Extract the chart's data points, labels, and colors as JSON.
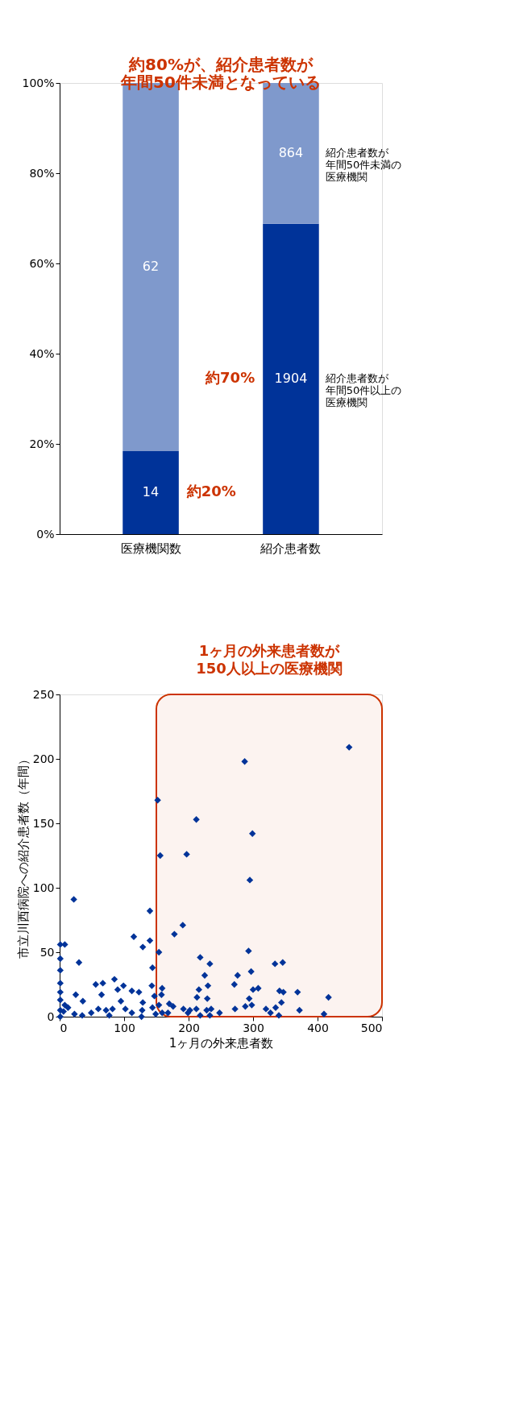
{
  "chart_data": [
    {
      "type": "bar",
      "stacked": true,
      "categories": [
        "医療機関数",
        "紹介患者数"
      ],
      "ylim": [
        0,
        100
      ],
      "yticks": [
        {
          "value": 0,
          "label": "0%"
        },
        {
          "value": 20,
          "label": "20%"
        },
        {
          "value": 40,
          "label": "40%"
        },
        {
          "value": 60,
          "label": "60%"
        },
        {
          "value": 80,
          "label": "80%"
        },
        {
          "value": 100,
          "label": "100%"
        }
      ],
      "series": [
        {
          "name": "紹介患者数が年間50件以上の医療機関",
          "color": "#003399",
          "values": [
            18.4,
            68.8
          ]
        },
        {
          "name": "紹介患者数が年間50件未満の医療機関",
          "color": "#7f99cc",
          "values": [
            81.6,
            31.2
          ]
        }
      ],
      "annotations": [
        "約80%が、紹介患者数が年間50件未満となっている",
        "約70%",
        "約20%",
        "14",
        "1904",
        "62",
        "864"
      ],
      "grid": false
    },
    {
      "type": "scatter",
      "marker": "diamond",
      "color": "#003399",
      "xlabel": "1ヶ月の外来患者数",
      "ylabel": "市立川西病院への紹介患者数（年間）",
      "xlim": [
        0,
        500
      ],
      "xticks": [
        0,
        100,
        200,
        300,
        400,
        500
      ],
      "ylim": [
        0,
        250
      ],
      "yticks": [
        0,
        50,
        100,
        150,
        200,
        250
      ],
      "x": [
        449,
        417,
        410,
        369,
        372,
        346,
        347,
        341,
        344,
        335,
        340,
        334,
        327,
        320,
        287,
        299,
        295,
        293,
        297,
        308,
        300,
        294,
        298,
        288,
        276,
        271,
        272,
        248,
        233,
        230,
        229,
        225,
        235,
        233,
        228,
        218,
        216,
        213,
        212,
        218,
        212,
        197,
        202,
        199,
        192,
        191,
        178,
        176,
        170,
        168,
        152,
        156,
        154,
        159,
        158,
        154,
        159,
        140,
        140,
        144,
        143,
        147,
        144,
        149,
        129,
        123,
        129,
        128,
        127,
        115,
        112,
        112,
        99,
        90,
        95,
        102,
        85,
        67,
        65,
        56,
        36,
        30,
        25,
        22,
        8,
        1,
        1,
        1,
        1,
        1,
        1,
        82,
        72,
        60,
        49,
        35,
        23,
        13,
        6,
        1,
        1,
        8,
        77
      ],
      "values": [
        209,
        15,
        2,
        19,
        5,
        42,
        19,
        20,
        11,
        7,
        1,
        41,
        3,
        6,
        198,
        142,
        106,
        51,
        35,
        22,
        21,
        14,
        9,
        8,
        32,
        25,
        6,
        3,
        41,
        24,
        14,
        32,
        6,
        1,
        5,
        46,
        21,
        15,
        6,
        1,
        153,
        126,
        5,
        3,
        6,
        71,
        64,
        8,
        10,
        3,
        168,
        125,
        50,
        22,
        17,
        9,
        3,
        82,
        59,
        38,
        24,
        16,
        7,
        2,
        54,
        19,
        11,
        5,
        0,
        62,
        20,
        3,
        24,
        21,
        12,
        6,
        29,
        26,
        17,
        25,
        12,
        42,
        17,
        91,
        56,
        56,
        45,
        36,
        26,
        19,
        13,
        6,
        5,
        6,
        3,
        1,
        2,
        7,
        4,
        0,
        5,
        9,
        1
      ],
      "bands": [
        {
          "axis": "x",
          "from": 150,
          "to": 500,
          "label": "1ヶ月の外来患者数が150人以上の医療機関",
          "color": "#cc3300"
        }
      ],
      "grid": false
    }
  ]
}
